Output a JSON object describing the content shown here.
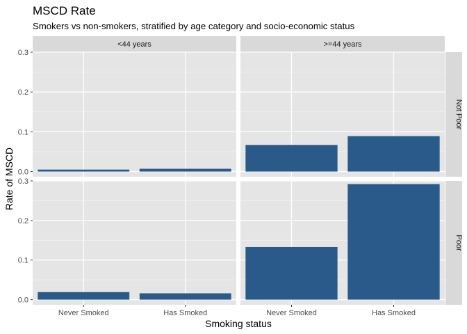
{
  "chart_data": {
    "type": "bar",
    "title": "MSCD Rate",
    "subtitle": "Smokers vs non-smokers, stratified by age category and socio-economic status",
    "xlabel": "Smoking status",
    "ylabel": "Rate of MSCD",
    "categories": [
      "Never Smoked",
      "Has Smoked"
    ],
    "yticks": [
      "0.0",
      "0.1",
      "0.2",
      "0.3"
    ],
    "ylim": [
      -0.013,
      0.3
    ],
    "col_facets": [
      "<44 years",
      ">=44 years"
    ],
    "row_facets": [
      "Not Poor",
      "Poor"
    ],
    "bar_color": "#2a5a8a",
    "panel_color": "#e5e5e5",
    "strip_color": "#d9d9d9",
    "grid": true,
    "panels": [
      {
        "col": "<44 years",
        "row": "Not Poor",
        "values": [
          0.005,
          0.007
        ]
      },
      {
        "col": ">=44 years",
        "row": "Not Poor",
        "values": [
          0.067,
          0.089
        ]
      },
      {
        "col": "<44 years",
        "row": "Poor",
        "values": [
          0.019,
          0.016
        ]
      },
      {
        "col": ">=44 years",
        "row": "Poor",
        "values": [
          0.133,
          0.292
        ]
      }
    ]
  }
}
